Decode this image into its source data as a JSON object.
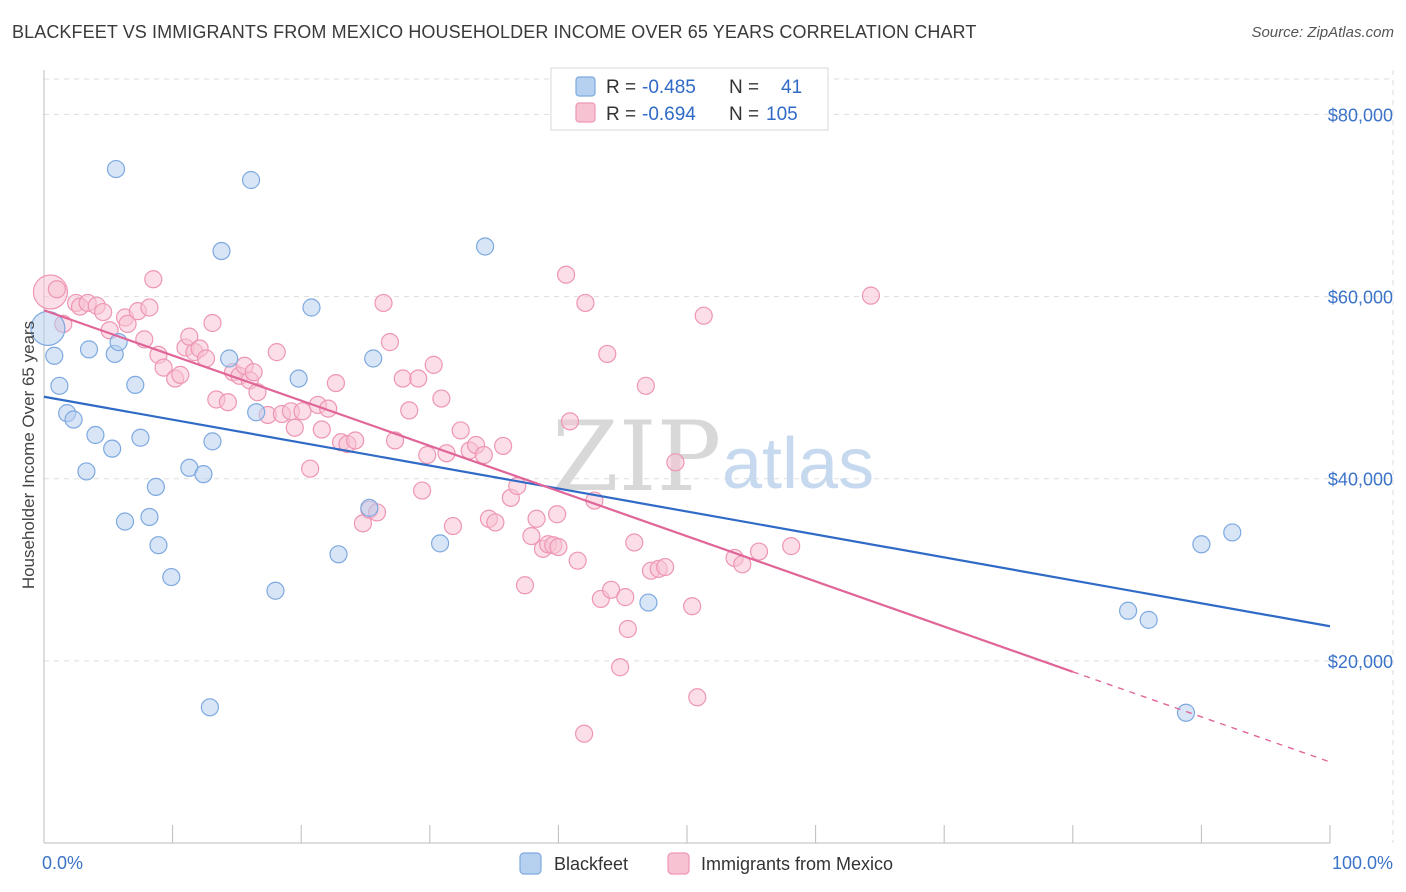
{
  "title": "BLACKFEET VS IMMIGRANTS FROM MEXICO HOUSEHOLDER INCOME OVER 65 YEARS CORRELATION CHART",
  "source": "Source: ZipAtlas.com",
  "watermark": {
    "zip": "ZIP",
    "atlas": "atlas"
  },
  "legend_top": {
    "rows": [
      {
        "r_label": "R =",
        "r_value": "-0.485",
        "n_label": "N =",
        "n_value": "41"
      },
      {
        "r_label": "R =",
        "r_value": "-0.694",
        "n_label": "N =",
        "n_value": "105"
      }
    ]
  },
  "colors": {
    "blue_fill": "#b6d0f0",
    "blue_stroke": "#7ea9e0",
    "blue_line": "#2f6ac6",
    "pink_fill": "#f7c3d3",
    "pink_stroke": "#ee96b4",
    "pink_line": "#e0669a",
    "grid": "#dddddd",
    "axis_text": "#3b73c8"
  },
  "chart_data": {
    "type": "scatter",
    "title": "BLACKFEET VS IMMIGRANTS FROM MEXICO HOUSEHOLDER INCOME OVER 65 YEARS CORRELATION CHART",
    "xlabel": "",
    "ylabel": "Householder Income Over 65 years",
    "xlim": [
      0,
      100
    ],
    "ylim": [
      0,
      84000
    ],
    "x_tick_labels": [
      "0.0%",
      "100.0%"
    ],
    "y_ticks": [
      20000,
      40000,
      60000,
      80000
    ],
    "y_tick_labels": [
      "$20,000",
      "$40,000",
      "$60,000",
      "$80,000"
    ],
    "grid": true,
    "legend_position": "bottom-center",
    "series": [
      {
        "name": "Blackfeet",
        "points": [
          [
            0.3,
            56500
          ],
          [
            0.8,
            53500
          ],
          [
            1.2,
            50200
          ],
          [
            1.8,
            47200
          ],
          [
            2.3,
            46500
          ],
          [
            3.5,
            54200
          ],
          [
            4.0,
            44800
          ],
          [
            3.3,
            40800
          ],
          [
            5.5,
            53700
          ],
          [
            5.8,
            55000
          ],
          [
            5.3,
            43300
          ],
          [
            5.6,
            74000
          ],
          [
            7.1,
            50300
          ],
          [
            7.5,
            44500
          ],
          [
            8.2,
            35800
          ],
          [
            6.3,
            35300
          ],
          [
            8.7,
            39100
          ],
          [
            8.9,
            32700
          ],
          [
            9.9,
            29200
          ],
          [
            11.3,
            41200
          ],
          [
            12.4,
            40500
          ],
          [
            13.1,
            44100
          ],
          [
            13.8,
            65000
          ],
          [
            14.4,
            53200
          ],
          [
            16.1,
            72800
          ],
          [
            16.5,
            47300
          ],
          [
            18.0,
            27700
          ],
          [
            19.8,
            51000
          ],
          [
            20.8,
            58800
          ],
          [
            22.9,
            31700
          ],
          [
            25.3,
            36800
          ],
          [
            25.6,
            53200
          ],
          [
            30.8,
            32900
          ],
          [
            34.3,
            65500
          ],
          [
            47.0,
            26400
          ],
          [
            84.3,
            25500
          ],
          [
            85.9,
            24500
          ],
          [
            90.0,
            32800
          ],
          [
            92.4,
            34100
          ],
          [
            88.8,
            14300
          ],
          [
            12.9,
            14900
          ]
        ],
        "trend": {
          "x0": 0,
          "y0": 49000,
          "x1": 100,
          "y1": 23800
        }
      },
      {
        "name": "Immigrants from Mexico",
        "points": [
          [
            0.5,
            60500
          ],
          [
            1.0,
            60800
          ],
          [
            1.5,
            57000
          ],
          [
            2.5,
            59300
          ],
          [
            2.8,
            58900
          ],
          [
            3.4,
            59300
          ],
          [
            4.1,
            59000
          ],
          [
            4.6,
            58300
          ],
          [
            5.1,
            56300
          ],
          [
            6.3,
            57700
          ],
          [
            6.5,
            57000
          ],
          [
            7.3,
            58400
          ],
          [
            7.8,
            55300
          ],
          [
            8.2,
            58800
          ],
          [
            8.5,
            61900
          ],
          [
            8.9,
            53600
          ],
          [
            9.3,
            52200
          ],
          [
            10.2,
            51000
          ],
          [
            10.6,
            51400
          ],
          [
            11.0,
            54400
          ],
          [
            11.3,
            55600
          ],
          [
            11.7,
            53900
          ],
          [
            12.1,
            54300
          ],
          [
            12.6,
            53200
          ],
          [
            13.1,
            57100
          ],
          [
            13.4,
            48700
          ],
          [
            14.3,
            48400
          ],
          [
            14.7,
            51700
          ],
          [
            15.2,
            51300
          ],
          [
            15.6,
            52400
          ],
          [
            16.0,
            50800
          ],
          [
            16.3,
            51700
          ],
          [
            16.6,
            49500
          ],
          [
            17.4,
            47000
          ],
          [
            18.1,
            53900
          ],
          [
            18.5,
            47100
          ],
          [
            19.2,
            47400
          ],
          [
            19.5,
            45600
          ],
          [
            20.1,
            47400
          ],
          [
            20.7,
            41100
          ],
          [
            21.3,
            48100
          ],
          [
            21.6,
            45400
          ],
          [
            22.1,
            47700
          ],
          [
            22.7,
            50500
          ],
          [
            23.1,
            44000
          ],
          [
            23.6,
            43800
          ],
          [
            24.2,
            44200
          ],
          [
            24.8,
            35100
          ],
          [
            25.3,
            36600
          ],
          [
            25.9,
            36300
          ],
          [
            26.4,
            59300
          ],
          [
            26.9,
            55000
          ],
          [
            27.3,
            44200
          ],
          [
            27.9,
            51000
          ],
          [
            28.4,
            47500
          ],
          [
            29.1,
            51000
          ],
          [
            29.4,
            38700
          ],
          [
            29.8,
            42600
          ],
          [
            30.3,
            52500
          ],
          [
            30.9,
            48800
          ],
          [
            31.3,
            42800
          ],
          [
            31.8,
            34800
          ],
          [
            32.4,
            45300
          ],
          [
            33.1,
            43100
          ],
          [
            33.6,
            43700
          ],
          [
            34.2,
            42600
          ],
          [
            34.6,
            35600
          ],
          [
            35.1,
            35200
          ],
          [
            35.7,
            43600
          ],
          [
            36.3,
            37900
          ],
          [
            36.8,
            39200
          ],
          [
            37.4,
            28300
          ],
          [
            37.9,
            33700
          ],
          [
            38.3,
            35600
          ],
          [
            38.8,
            32300
          ],
          [
            39.2,
            32800
          ],
          [
            39.6,
            32700
          ],
          [
            40.0,
            32500
          ],
          [
            40.6,
            62400
          ],
          [
            40.9,
            46300
          ],
          [
            41.5,
            31000
          ],
          [
            42.1,
            59300
          ],
          [
            42.8,
            37600
          ],
          [
            43.3,
            26800
          ],
          [
            43.8,
            53700
          ],
          [
            44.1,
            27800
          ],
          [
            44.8,
            19300
          ],
          [
            45.4,
            23500
          ],
          [
            45.9,
            33000
          ],
          [
            46.8,
            50200
          ],
          [
            47.2,
            29900
          ],
          [
            47.8,
            30100
          ],
          [
            48.3,
            30300
          ],
          [
            49.1,
            41800
          ],
          [
            50.4,
            26000
          ],
          [
            50.8,
            16000
          ],
          [
            51.3,
            57900
          ],
          [
            53.7,
            31300
          ],
          [
            54.3,
            30600
          ],
          [
            55.6,
            32000
          ],
          [
            58.1,
            32600
          ],
          [
            64.3,
            60100
          ],
          [
            42.0,
            12000
          ],
          [
            45.2,
            27000
          ],
          [
            39.9,
            36100
          ]
        ],
        "trend": {
          "x0": 0,
          "y0": 58500,
          "x1": 80,
          "y1": 18800,
          "dash_x1": 100,
          "dash_y1": 8900
        }
      }
    ]
  }
}
